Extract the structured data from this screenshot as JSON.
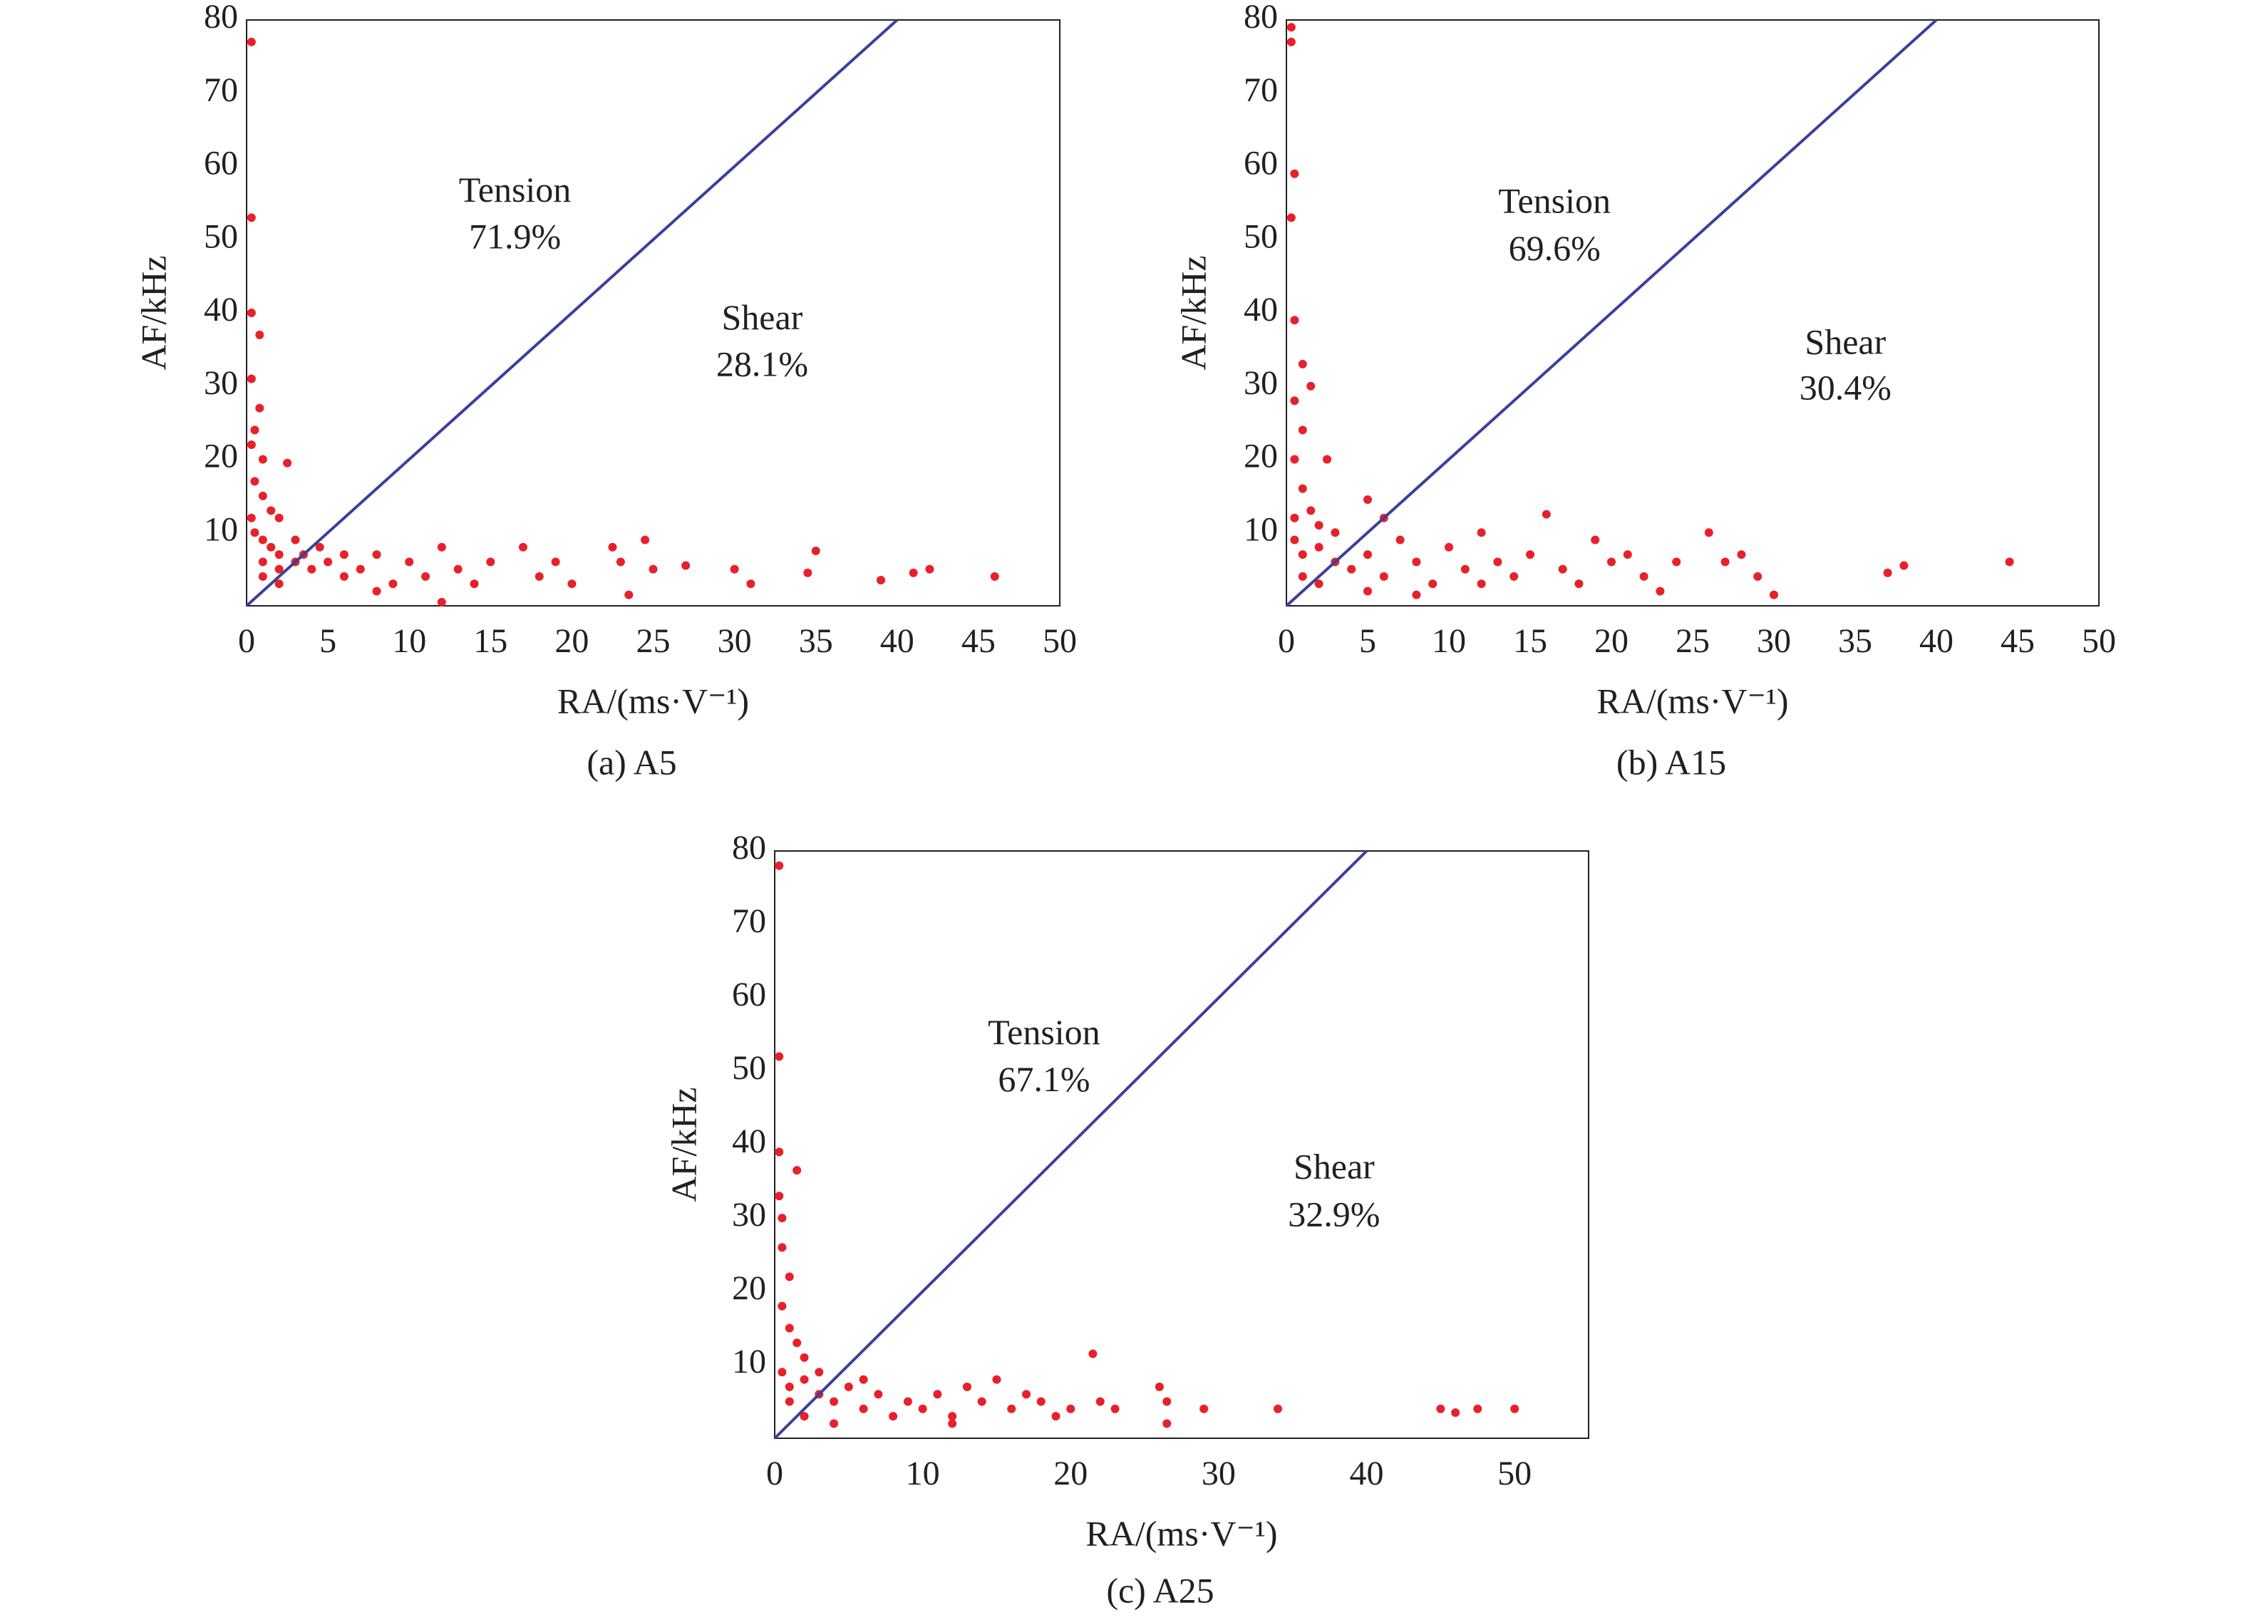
{
  "chart_data": [
    {
      "type": "scatter",
      "caption": "(a) A5",
      "xlabel": "RA/(ms·V⁻¹)",
      "ylabel": "AF/kHz",
      "xlim": [
        0,
        50
      ],
      "xticks": [
        0,
        5,
        10,
        15,
        20,
        25,
        30,
        35,
        40,
        45,
        50
      ],
      "ylim": [
        0,
        80
      ],
      "yticks": [
        10,
        20,
        30,
        40,
        50,
        60,
        70,
        80
      ],
      "annotations": [
        {
          "text": "Tension"
        },
        {
          "text": "71.9%"
        },
        {
          "text": "Shear"
        },
        {
          "text": "28.1%"
        }
      ],
      "series": [
        {
          "type": "scatter",
          "color": "#e8202a",
          "x": [
            0.3,
            0.3,
            0.3,
            0.8,
            0.3,
            0.8,
            0.5,
            0.3,
            1,
            2.5,
            0.5,
            1,
            1.5,
            2,
            0.5,
            1,
            1.5,
            2,
            3,
            4,
            3.5,
            5,
            6,
            7,
            8,
            9,
            10,
            11,
            12,
            13,
            14,
            15,
            17,
            18,
            19,
            20,
            22.5,
            23,
            24.5,
            25,
            27,
            30,
            31,
            35,
            34.5,
            39,
            41,
            42,
            46,
            2,
            1,
            3,
            4.5,
            6,
            8,
            12,
            23.5,
            2,
            1,
            0.3
          ],
          "values": [
            77,
            53,
            40,
            37,
            31,
            27,
            24,
            22,
            20,
            19.5,
            17,
            15,
            13,
            12,
            10,
            9,
            8,
            7,
            6,
            5,
            7,
            6,
            4,
            5,
            7,
            3,
            6,
            4,
            8,
            5,
            3,
            6,
            8,
            4,
            6,
            3,
            8,
            6,
            9,
            5,
            5.5,
            5,
            3,
            7.5,
            4.5,
            3.5,
            4.5,
            5,
            4,
            3,
            4,
            9,
            8,
            7,
            2,
            0.5,
            1.5,
            5,
            6,
            12
          ]
        },
        {
          "type": "line",
          "color": "#3b3f9e",
          "x": [
            0,
            40
          ],
          "values": [
            0,
            80
          ]
        }
      ]
    },
    {
      "type": "scatter",
      "caption": "(b) A15",
      "xlabel": "RA/(ms·V⁻¹)",
      "ylabel": "AF/kHz",
      "xlim": [
        0,
        50
      ],
      "xticks": [
        0,
        5,
        10,
        15,
        20,
        25,
        30,
        35,
        40,
        45,
        50
      ],
      "ylim": [
        0,
        80
      ],
      "yticks": [
        10,
        20,
        30,
        40,
        50,
        60,
        70,
        80
      ],
      "annotations": [
        {
          "text": "Tension"
        },
        {
          "text": "69.6%"
        },
        {
          "text": "Shear"
        },
        {
          "text": "30.4%"
        }
      ],
      "series": [
        {
          "type": "scatter",
          "color": "#e8202a",
          "x": [
            0.3,
            0.3,
            0.5,
            0.3,
            0.5,
            1,
            1.5,
            0.5,
            1,
            0.5,
            2.5,
            1,
            1.5,
            2,
            5,
            6,
            0.5,
            1,
            2,
            3,
            4,
            5,
            6,
            7,
            8,
            9,
            10,
            11,
            12,
            13,
            14,
            15,
            16,
            17,
            18,
            19,
            20,
            21,
            22,
            23,
            24,
            26,
            27,
            28,
            29,
            30,
            37,
            38,
            44.5,
            2,
            3,
            5,
            8,
            12,
            0.5,
            1
          ],
          "values": [
            79,
            77,
            59,
            53,
            39,
            33,
            30,
            28,
            24,
            20,
            20,
            16,
            13,
            11,
            14.5,
            12,
            9,
            7,
            8,
            6,
            5,
            7,
            4,
            9,
            6,
            3,
            8,
            5,
            10,
            6,
            4,
            7,
            12.5,
            5,
            3,
            9,
            6,
            7,
            4,
            2,
            6,
            10,
            6,
            7,
            4,
            1.5,
            4.5,
            5.5,
            6,
            3,
            10,
            2,
            1.5,
            3,
            12,
            4
          ]
        },
        {
          "type": "line",
          "color": "#3b3f9e",
          "x": [
            0,
            40
          ],
          "values": [
            0,
            80
          ]
        }
      ]
    },
    {
      "type": "scatter",
      "caption": "(c) A25",
      "xlabel": "RA/(ms·V⁻¹)",
      "ylabel": "AF/kHz",
      "xlim": [
        0,
        55
      ],
      "xticks": [
        0,
        10,
        20,
        30,
        40,
        50
      ],
      "ylim": [
        0,
        80
      ],
      "yticks": [
        10,
        20,
        30,
        40,
        50,
        60,
        70,
        80
      ],
      "annotations": [
        {
          "text": "Tension"
        },
        {
          "text": "67.1%"
        },
        {
          "text": "Shear"
        },
        {
          "text": "32.9%"
        }
      ],
      "series": [
        {
          "type": "scatter",
          "color": "#e8202a",
          "x": [
            0.3,
            0.3,
            0.3,
            1.5,
            0.3,
            0.5,
            0.5,
            1,
            0.5,
            1,
            1.5,
            2,
            0.5,
            1,
            2,
            3,
            4,
            5,
            6,
            7,
            8,
            9,
            10,
            11,
            12,
            13,
            14,
            15,
            16,
            17,
            18,
            19,
            20,
            21.5,
            22,
            23,
            26,
            26.5,
            29,
            34,
            45,
            46,
            47.5,
            50,
            2,
            3,
            4,
            1,
            6,
            12,
            26.5
          ],
          "values": [
            78,
            52,
            39,
            36.5,
            33,
            30,
            26,
            22,
            18,
            15,
            13,
            11,
            9,
            7,
            8,
            6,
            5,
            7,
            4,
            6,
            3,
            5,
            4,
            6,
            3,
            7,
            5,
            8,
            4,
            6,
            5,
            3,
            4,
            11.5,
            5,
            4,
            7,
            5,
            4,
            4,
            4,
            3.5,
            4,
            4,
            3,
            9,
            2,
            5,
            8,
            2,
            2
          ]
        },
        {
          "type": "line",
          "color": "#3b3f9e",
          "x": [
            0,
            40
          ],
          "values": [
            0,
            80
          ]
        }
      ]
    }
  ]
}
